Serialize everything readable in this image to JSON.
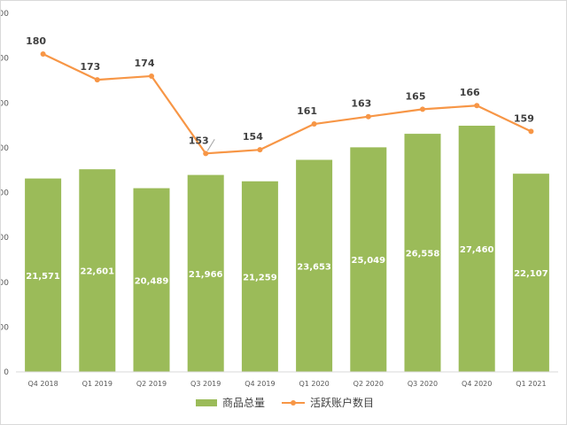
{
  "chart_data": {
    "type": "bar",
    "categories": [
      "Q4 2018",
      "Q1 2019",
      "Q2 2019",
      "Q3 2019",
      "Q4 2019",
      "Q1 2020",
      "Q2 2020",
      "Q3 2020",
      "Q4 2020",
      "Q1 2021"
    ],
    "series": [
      {
        "name": "商品总量",
        "type": "bar",
        "color": "#9bbb59",
        "values": [
          21571,
          22601,
          20489,
          21966,
          21259,
          23653,
          25049,
          26558,
          27460,
          22107
        ],
        "labels": [
          "21,571",
          "22,601",
          "20,489",
          "21,966",
          "21,259",
          "23,653",
          "25,049",
          "26,558",
          "27,460",
          "22,107"
        ]
      },
      {
        "name": "活跃账户数目",
        "type": "line",
        "color": "#f79646",
        "values": [
          180,
          173,
          174,
          153,
          154,
          161,
          163,
          165,
          166,
          159
        ],
        "labels": [
          "180",
          "173",
          "174",
          "153",
          "154",
          "161",
          "163",
          "165",
          "166",
          "159"
        ]
      }
    ],
    "y_axis": {
      "tick_labels": [
        "0",
        "000",
        "000",
        "000",
        "000",
        "000",
        "000",
        "000",
        "000"
      ]
    },
    "grid": false,
    "legend": "bottom-center"
  }
}
